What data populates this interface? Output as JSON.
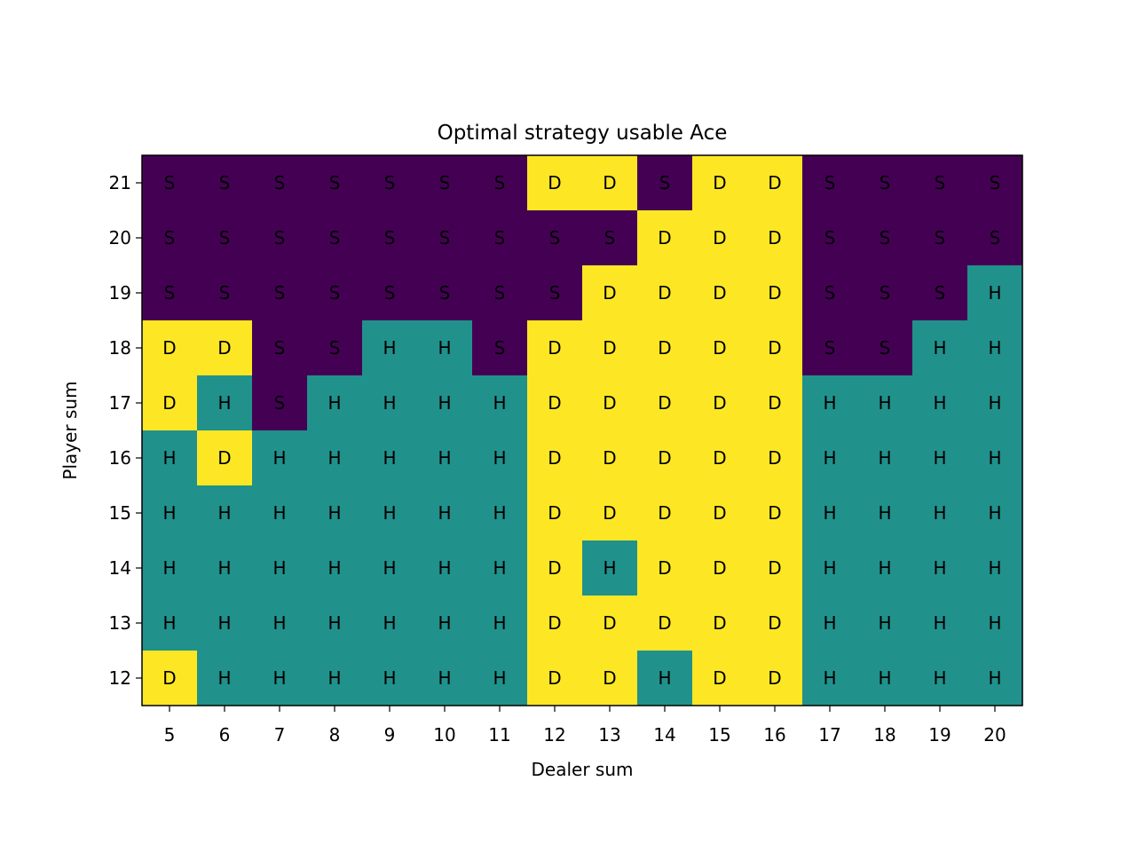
{
  "chart_data": {
    "type": "heatmap",
    "title": "Optimal strategy usable Ace",
    "xlabel": "Dealer sum",
    "ylabel": "Player sum",
    "x": [
      5,
      6,
      7,
      8,
      9,
      10,
      11,
      12,
      13,
      14,
      15,
      16,
      17,
      18,
      19,
      20
    ],
    "y": [
      21,
      20,
      19,
      18,
      17,
      16,
      15,
      14,
      13,
      12
    ],
    "grid": false,
    "action_colors": {
      "S": "#440154",
      "H": "#21918c",
      "D": "#fde725"
    },
    "cells": [
      [
        "S",
        "S",
        "S",
        "S",
        "S",
        "S",
        "S",
        "D",
        "D",
        "S",
        "D",
        "D",
        "S",
        "S",
        "S",
        "S"
      ],
      [
        "S",
        "S",
        "S",
        "S",
        "S",
        "S",
        "S",
        "S",
        "S",
        "D",
        "D",
        "D",
        "S",
        "S",
        "S",
        "S"
      ],
      [
        "S",
        "S",
        "S",
        "S",
        "S",
        "S",
        "S",
        "S",
        "D",
        "D",
        "D",
        "D",
        "S",
        "S",
        "S",
        "H"
      ],
      [
        "D",
        "D",
        "S",
        "S",
        "H",
        "H",
        "S",
        "D",
        "D",
        "D",
        "D",
        "D",
        "S",
        "S",
        "H",
        "H"
      ],
      [
        "D",
        "H",
        "S",
        "H",
        "H",
        "H",
        "H",
        "D",
        "D",
        "D",
        "D",
        "D",
        "H",
        "H",
        "H",
        "H"
      ],
      [
        "H",
        "D",
        "H",
        "H",
        "H",
        "H",
        "H",
        "D",
        "D",
        "D",
        "D",
        "D",
        "H",
        "H",
        "H",
        "H"
      ],
      [
        "H",
        "H",
        "H",
        "H",
        "H",
        "H",
        "H",
        "D",
        "D",
        "D",
        "D",
        "D",
        "H",
        "H",
        "H",
        "H"
      ],
      [
        "H",
        "H",
        "H",
        "H",
        "H",
        "H",
        "H",
        "D",
        "H",
        "D",
        "D",
        "D",
        "H",
        "H",
        "H",
        "H"
      ],
      [
        "H",
        "H",
        "H",
        "H",
        "H",
        "H",
        "H",
        "D",
        "D",
        "D",
        "D",
        "D",
        "H",
        "H",
        "H",
        "H"
      ],
      [
        "D",
        "H",
        "H",
        "H",
        "H",
        "H",
        "H",
        "D",
        "D",
        "H",
        "D",
        "D",
        "H",
        "H",
        "H",
        "H"
      ]
    ]
  }
}
